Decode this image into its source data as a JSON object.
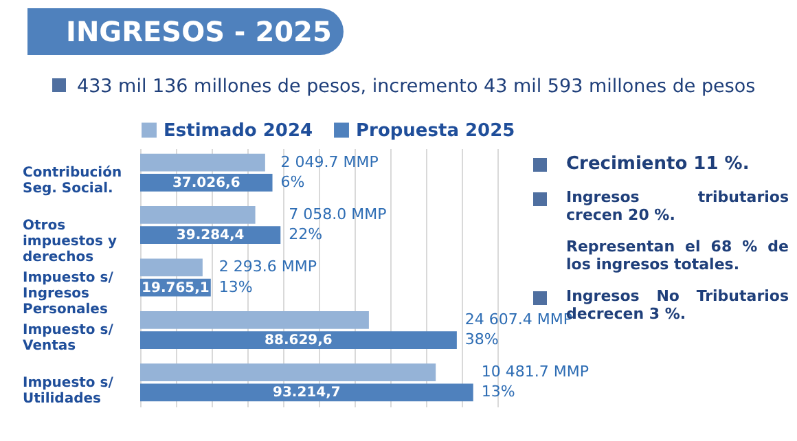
{
  "chart_data": {
    "type": "bar",
    "orientation": "horizontal",
    "title": "INGRESOS - 2025",
    "subtitle": "433 mil 136 millones de pesos, incremento 43 mil 593 millones de pesos",
    "categories": [
      "Contribución Seg. Social.",
      "Otros impuestos y derechos",
      "Impuesto s/ Ingresos Personales",
      "Impuesto s/ Ventas",
      "Impuesto s/ Utilidades"
    ],
    "series": [
      {
        "name": "Estimado 2024",
        "color": "#95b3d7",
        "values": [
          34976.9,
          32226.4,
          17471.5,
          64022.2,
          82733.0
        ]
      },
      {
        "name": "Propuesta 2025",
        "color": "#4f81bd",
        "values": [
          37026.6,
          39284.4,
          19765.1,
          88629.6,
          93214.7
        ],
        "value_labels": [
          "37.026,6",
          "39.284,4",
          "19.765,1",
          "88.629,6",
          "93.214,7"
        ]
      }
    ],
    "grid": "x",
    "legend": "top",
    "tick_labels": "y",
    "annotations": [
      {
        "text": "6%",
        "x": 37026.6,
        "y": "Contribución Seg. Social."
      },
      {
        "text": "2 049.7 MMP",
        "x": 37026.6,
        "y": "Contribución Seg. Social."
      },
      {
        "text": "22%",
        "x": 39284.4,
        "y": "Otros impuestos y derechos"
      },
      {
        "text": "7 058.0 MMP",
        "x": 39284.4,
        "y": "Otros impuestos y derechos"
      },
      {
        "text": "13%",
        "x": 19765.1,
        "y": "Impuesto s/ Ingresos Personales"
      },
      {
        "text": "2 293.6 MMP",
        "x": 19765.1,
        "y": "Impuesto s/ Ingresos Personales"
      },
      {
        "text": "38%",
        "x": 88629.6,
        "y": "Impuesto s/ Ventas"
      },
      {
        "text": "24 607.4 MMP",
        "x": 88629.6,
        "y": "Impuesto s/ Ventas"
      },
      {
        "text": "13%",
        "x": 93214.7,
        "y": "Impuesto s/ Utilidades"
      },
      {
        "text": "10 481.7 MMP",
        "x": 93214.7,
        "y": "Impuesto s/ Utilidades"
      },
      "Crecimiento 11 %.",
      "Ingresos tributarios crecen 20 %.",
      "Representan el 68 % de los ingresos totales.",
      "Ingresos No Tributarios decrecen 3 %."
    ]
  }
}
